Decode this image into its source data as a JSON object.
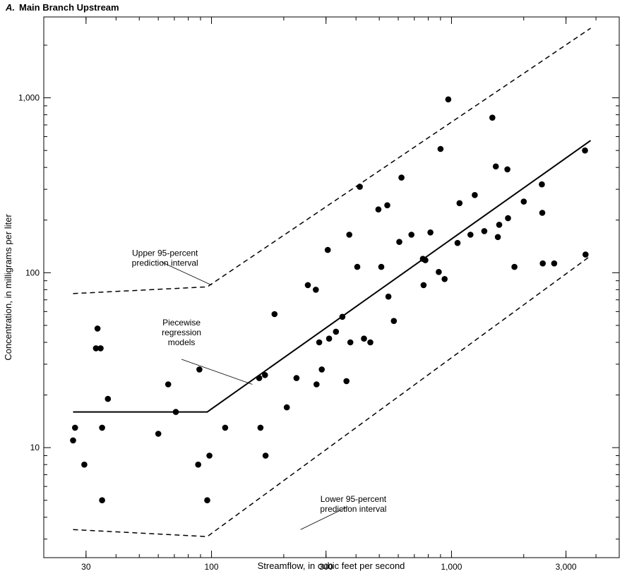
{
  "chart_data": {
    "type": "scatter",
    "panel_label": "A.",
    "title": "Main Branch Upstream",
    "xlabel": "Streamflow, in cubic feet per second",
    "ylabel": "Concentration, in milligrams per liter",
    "xscale": "log",
    "yscale": "log",
    "xlim": [
      20,
      5000
    ],
    "ylim": [
      2.35,
      2900
    ],
    "xticks": [
      {
        "value": 30,
        "label": "30"
      },
      {
        "value": 100,
        "label": "100"
      },
      {
        "value": 300,
        "label": "300"
      },
      {
        "value": 1000,
        "label": "1,000"
      },
      {
        "value": 3000,
        "label": "3,000"
      }
    ],
    "yticks": [
      {
        "value": 10,
        "label": "10"
      },
      {
        "value": 100,
        "label": "100"
      },
      {
        "value": 1000,
        "label": "1,000"
      }
    ],
    "grid": false,
    "points": [
      [
        26.5,
        11
      ],
      [
        27,
        13
      ],
      [
        29.5,
        8
      ],
      [
        33,
        37
      ],
      [
        33.5,
        48
      ],
      [
        34.5,
        37
      ],
      [
        35,
        13
      ],
      [
        35,
        5
      ],
      [
        37,
        19
      ],
      [
        60,
        12
      ],
      [
        66,
        23
      ],
      [
        71,
        16
      ],
      [
        88,
        8
      ],
      [
        89,
        28
      ],
      [
        96,
        5
      ],
      [
        98,
        9
      ],
      [
        114,
        13
      ],
      [
        158,
        25
      ],
      [
        160,
        13
      ],
      [
        167,
        26
      ],
      [
        168,
        9
      ],
      [
        183,
        58
      ],
      [
        206,
        17
      ],
      [
        226,
        25
      ],
      [
        252,
        85
      ],
      [
        272,
        80
      ],
      [
        274,
        23
      ],
      [
        281,
        40
      ],
      [
        288,
        28
      ],
      [
        305,
        135
      ],
      [
        309,
        42
      ],
      [
        330,
        46
      ],
      [
        351,
        56
      ],
      [
        365,
        24
      ],
      [
        375,
        165
      ],
      [
        379,
        40
      ],
      [
        405,
        108
      ],
      [
        415,
        310
      ],
      [
        432,
        42
      ],
      [
        459,
        40
      ],
      [
        496,
        230
      ],
      [
        510,
        108
      ],
      [
        540,
        243
      ],
      [
        546,
        73
      ],
      [
        575,
        53
      ],
      [
        606,
        150
      ],
      [
        619,
        350
      ],
      [
        681,
        165
      ],
      [
        760,
        120
      ],
      [
        765,
        85
      ],
      [
        778,
        118
      ],
      [
        817,
        170
      ],
      [
        885,
        101
      ],
      [
        900,
        510
      ],
      [
        936,
        92
      ],
      [
        970,
        980
      ],
      [
        1060,
        148
      ],
      [
        1080,
        250
      ],
      [
        1200,
        165
      ],
      [
        1250,
        278
      ],
      [
        1370,
        173
      ],
      [
        1480,
        770
      ],
      [
        1530,
        405
      ],
      [
        1560,
        160
      ],
      [
        1580,
        188
      ],
      [
        1710,
        390
      ],
      [
        1720,
        205
      ],
      [
        1830,
        108
      ],
      [
        2000,
        255
      ],
      [
        2380,
        320
      ],
      [
        2390,
        220
      ],
      [
        2400,
        113
      ],
      [
        2680,
        113
      ],
      [
        3600,
        500
      ],
      [
        3620,
        127
      ]
    ],
    "lines": [
      {
        "name": "Piecewise regression models",
        "style": "solid",
        "points": [
          [
            26.5,
            16
          ],
          [
            96,
            16
          ],
          [
            3800,
            570
          ]
        ]
      },
      {
        "name": "Upper 95-percent prediction interval",
        "style": "dashed",
        "points": [
          [
            26.5,
            76
          ],
          [
            96,
            83
          ],
          [
            3800,
            2500
          ]
        ]
      },
      {
        "name": "Lower 95-percent prediction interval",
        "style": "dashed",
        "points": [
          [
            26.5,
            3.4
          ],
          [
            96,
            3.1
          ],
          [
            3800,
            125
          ]
        ]
      }
    ],
    "annotations": [
      {
        "key": "upper",
        "lines": [
          "Upper 95-percent",
          "prediction interval"
        ],
        "text_anchor": [
          64,
          125
        ],
        "pointer_from": [
          62,
          115
        ],
        "pointer_to": [
          100,
          85
        ]
      },
      {
        "key": "model",
        "lines": [
          "Piecewise",
          "regression",
          "models"
        ],
        "text_anchor": [
          75,
          50
        ],
        "pointer_from": [
          75,
          32
        ],
        "pointer_to": [
          148,
          23
        ]
      },
      {
        "key": "lower",
        "lines": [
          "Lower 95-percent",
          "prediction interval"
        ],
        "text_anchor": [
          390,
          4.9
        ],
        "pointer_from": [
          370,
          4.6
        ],
        "pointer_to": [
          235,
          3.4
        ]
      }
    ]
  }
}
